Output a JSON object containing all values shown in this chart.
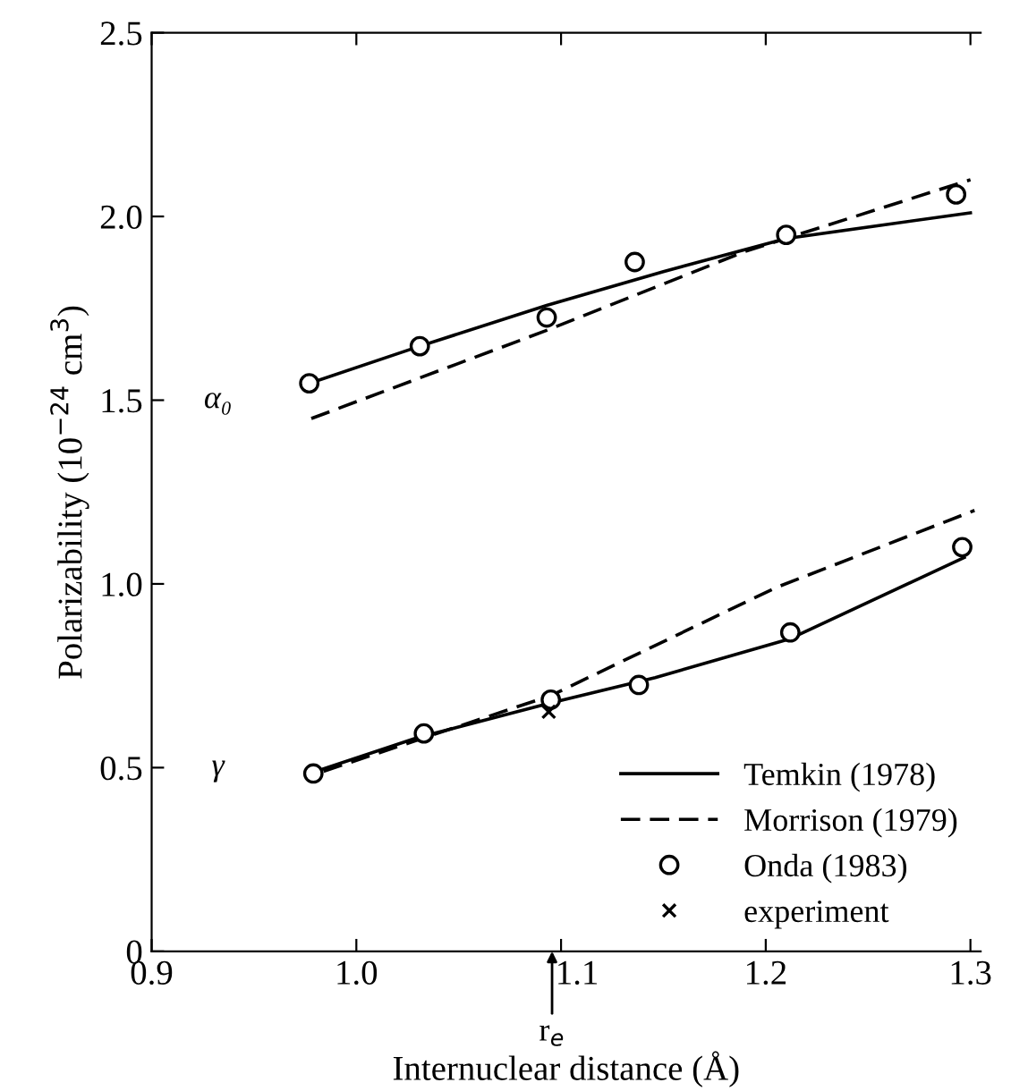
{
  "chart_data": {
    "type": "line",
    "xlabel": "Internuclear distance (Å)",
    "ylabel": "Polarizability (10$^{−24}$ cm$^{3}$)",
    "xlim": [
      0.9,
      1.305
    ],
    "ylim": [
      0,
      2.5
    ],
    "xticks": [
      {
        "value": 0.9,
        "label": "0.9"
      },
      {
        "value": 1.0,
        "label": "1.0"
      },
      {
        "value": 1.1,
        "label": "1.1"
      },
      {
        "value": 1.2,
        "label": "1.2"
      },
      {
        "value": 1.3,
        "label": "1.3"
      }
    ],
    "yticks": [
      {
        "value": 0,
        "label": "0"
      },
      {
        "value": 0.5,
        "label": "0.5"
      },
      {
        "value": 1.0,
        "label": "1.0"
      },
      {
        "value": 1.5,
        "label": "1.5"
      },
      {
        "value": 2.0,
        "label": "2.0"
      },
      {
        "value": 2.5,
        "label": "2.5"
      }
    ],
    "grid": false,
    "legend": "bottom right",
    "annotations": [
      "α₀",
      "γ",
      "r$_{e}$"
    ],
    "series": [
      {
        "name": "Temkin (1978)",
        "color": "#000000",
        "line_style": "solid",
        "marker": "none",
        "x": [
          0.977,
          1.031,
          1.093,
          1.15,
          1.21,
          1.3,
          null,
          0.984,
          1.03,
          1.095,
          1.146,
          1.212,
          1.297
        ],
        "values": [
          1.546,
          1.647,
          1.758,
          1.85,
          1.94,
          2.01,
          null,
          0.497,
          0.582,
          0.676,
          0.745,
          0.851,
          1.072
        ]
      },
      {
        "name": "Morrison (1979)",
        "color": "#000000",
        "line_style": "dashed",
        "marker": "none",
        "x": [
          0.978,
          1.093,
          1.19,
          1.3,
          null,
          0.984,
          1.095,
          1.205,
          1.302
        ],
        "values": [
          1.45,
          1.69,
          1.905,
          2.1,
          null,
          0.49,
          0.696,
          0.99,
          1.2
        ]
      },
      {
        "name": "Onda (1983)",
        "type": "scatter",
        "color": "#000000",
        "marker": "circle",
        "x": [
          0.977,
          1.031,
          1.093,
          1.136,
          1.21,
          1.293,
          0.979,
          1.033,
          1.095,
          1.138,
          1.212,
          1.296
        ],
        "values": [
          1.546,
          1.647,
          1.725,
          1.876,
          1.95,
          2.06,
          0.484,
          0.593,
          0.685,
          0.725,
          0.868,
          1.1
        ]
      },
      {
        "name": "experiment",
        "type": "scatter",
        "color": "#000000",
        "marker": "cross",
        "x": [
          1.094
        ],
        "values": [
          0.652
        ]
      }
    ]
  }
}
